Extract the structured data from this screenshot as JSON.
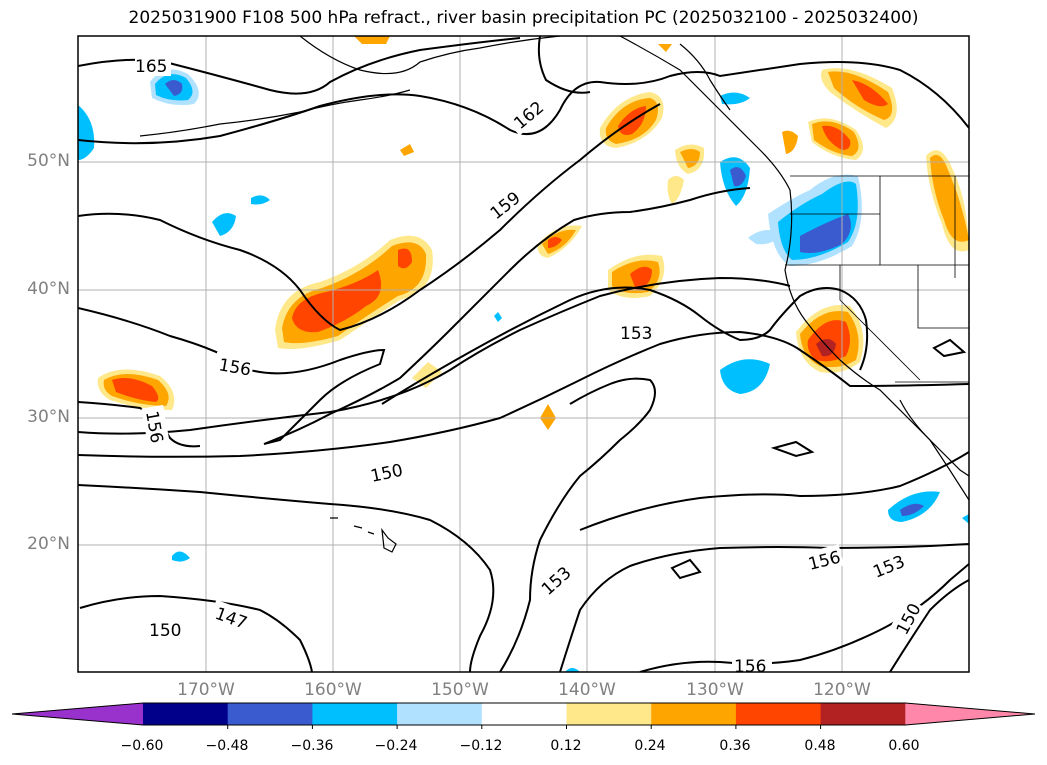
{
  "title": "2025031900 F108 500 hPa refract., river basin precipitation PC (2025032100 - 2025032400)",
  "lat_labels": [
    "50°N",
    "40°N",
    "30°N",
    "20°N"
  ],
  "lon_labels": [
    "170°W",
    "160°W",
    "150°W",
    "140°W",
    "130°W",
    "120°W"
  ],
  "contour_labels": [
    "165",
    "162",
    "159",
    "156",
    "156",
    "153",
    "150",
    "147",
    "150",
    "153",
    "156",
    "153",
    "150",
    "156"
  ],
  "colorbar": {
    "ticks": [
      "−0.60",
      "−0.48",
      "−0.36",
      "−0.24",
      "−0.12",
      "0.12",
      "0.24",
      "0.36",
      "0.48",
      "0.60"
    ],
    "colors": [
      "#9932cc",
      "#00008b",
      "#3a5bcf",
      "#00bfff",
      "#b0e2ff",
      "#ffffff",
      "#ffe88a",
      "#ffa500",
      "#ff4500",
      "#b22222",
      "#ff88aa"
    ]
  },
  "map_meta": {
    "extent_lon": [
      -180,
      -110
    ],
    "extent_lat": [
      10,
      60
    ],
    "grid": true
  }
}
